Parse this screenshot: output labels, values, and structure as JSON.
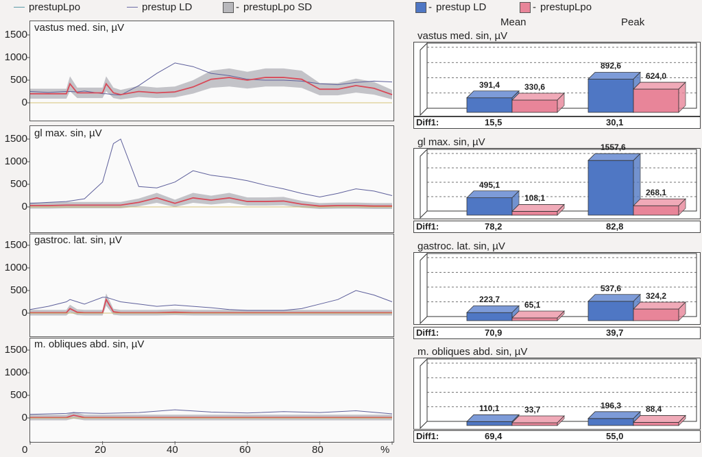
{
  "legend_left": [
    {
      "label": "prestupLpo",
      "color": "#5a9aa8",
      "kind": "line"
    },
    {
      "label": "prestup LD",
      "color": "#6b6aa5",
      "kind": "line"
    },
    {
      "label": "prestupLpo SD",
      "color": "#b8b8bc",
      "kind": "box"
    }
  ],
  "legend_right": [
    {
      "label": "prestup LD",
      "color": "#4f77c4"
    },
    {
      "label": "prestupLpo",
      "color": "#e88599"
    }
  ],
  "column_headers": {
    "mean": "Mean",
    "peak": "Peak"
  },
  "x_axis": {
    "ticks": [
      "0",
      "20",
      "40",
      "60",
      "80",
      "%"
    ]
  },
  "y_axis": {
    "ticks": [
      "1500",
      "1000",
      "500",
      "0"
    ]
  },
  "colors": {
    "ld_line": "#5c5e9a",
    "lpo_line": "#d84a58",
    "sd_band": "#b8b8be",
    "bar_ld": "#4f77c4",
    "bar_lpo": "#e88599",
    "bar_ld_top": "#7d9bd8",
    "bar_lpo_top": "#f0aab8"
  },
  "chart_data": [
    {
      "type": "line",
      "title": "vastus med. sin, µV",
      "x": [
        0,
        5,
        10,
        11,
        13,
        15,
        20,
        21,
        23,
        25,
        30,
        35,
        40,
        45,
        50,
        55,
        60,
        65,
        70,
        75,
        80,
        85,
        90,
        95,
        100
      ],
      "series": [
        {
          "name": "prestup LD",
          "values": [
            250,
            230,
            250,
            250,
            240,
            260,
            200,
            200,
            180,
            170,
            380,
            650,
            880,
            800,
            650,
            600,
            520,
            500,
            500,
            480,
            420,
            400,
            450,
            480,
            460
          ]
        },
        {
          "name": "prestupLpo",
          "values": [
            200,
            200,
            200,
            420,
            220,
            220,
            220,
            420,
            220,
            180,
            250,
            220,
            240,
            350,
            520,
            560,
            500,
            560,
            560,
            520,
            300,
            300,
            380,
            320,
            180
          ]
        }
      ],
      "ylim": [
        -300,
        1700
      ]
    },
    {
      "type": "line",
      "title": "gl max. sin, µV",
      "x": [
        0,
        5,
        10,
        15,
        20,
        23,
        25,
        30,
        35,
        40,
        45,
        50,
        55,
        60,
        65,
        70,
        75,
        80,
        85,
        90,
        95,
        100
      ],
      "series": [
        {
          "name": "prestup LD",
          "values": [
            80,
            100,
            120,
            180,
            550,
            1400,
            1500,
            450,
            420,
            550,
            800,
            700,
            650,
            580,
            480,
            400,
            300,
            220,
            300,
            400,
            350,
            250
          ]
        },
        {
          "name": "prestupLpo",
          "values": [
            30,
            30,
            40,
            40,
            40,
            40,
            40,
            100,
            200,
            80,
            200,
            150,
            200,
            120,
            120,
            130,
            60,
            20,
            30,
            30,
            20,
            20
          ]
        }
      ],
      "ylim": [
        -300,
        1700
      ]
    },
    {
      "type": "line",
      "title": "gastroc. lat. sin, µV",
      "x": [
        0,
        5,
        10,
        11,
        13,
        15,
        20,
        21,
        23,
        25,
        30,
        35,
        40,
        45,
        50,
        55,
        60,
        65,
        70,
        75,
        80,
        85,
        90,
        95,
        100
      ],
      "series": [
        {
          "name": "prestup LD",
          "values": [
            80,
            150,
            250,
            300,
            250,
            200,
            350,
            350,
            300,
            250,
            200,
            150,
            180,
            150,
            120,
            80,
            60,
            60,
            60,
            100,
            200,
            300,
            500,
            400,
            250
          ]
        },
        {
          "name": "prestupLpo",
          "values": [
            10,
            10,
            10,
            100,
            20,
            10,
            10,
            300,
            30,
            10,
            10,
            10,
            20,
            10,
            10,
            10,
            10,
            10,
            10,
            10,
            10,
            10,
            10,
            10,
            10
          ]
        }
      ],
      "ylim": [
        -300,
        1700
      ]
    },
    {
      "type": "line",
      "title": "m. obliques abd. sin, µV",
      "x": [
        0,
        10,
        12,
        15,
        20,
        30,
        40,
        50,
        60,
        70,
        80,
        90,
        100
      ],
      "series": [
        {
          "name": "prestup LD",
          "values": [
            80,
            100,
            120,
            110,
            100,
            120,
            180,
            130,
            110,
            140,
            120,
            160,
            90
          ]
        },
        {
          "name": "prestupLpo",
          "values": [
            10,
            10,
            60,
            10,
            10,
            10,
            10,
            10,
            10,
            10,
            10,
            10,
            10
          ]
        }
      ],
      "ylim": [
        -300,
        1700
      ]
    },
    {
      "type": "bar",
      "title": "vastus med. sin, µV",
      "categories": [
        "Mean",
        "Peak"
      ],
      "series": [
        {
          "name": "prestup LD",
          "values": [
            391.4,
            892.6
          ]
        },
        {
          "name": "prestupLpo",
          "values": [
            330.6,
            624.0
          ]
        }
      ],
      "labels": [
        "391,4",
        "330,6",
        "892,6",
        "624,0"
      ],
      "diff_label": "Diff1:",
      "diff": [
        "15,5",
        "30,1"
      ],
      "ylim": [
        0,
        1600
      ]
    },
    {
      "type": "bar",
      "title": "gl max. sin, µV",
      "categories": [
        "Mean",
        "Peak"
      ],
      "series": [
        {
          "name": "prestup LD",
          "values": [
            495.1,
            1557.6
          ]
        },
        {
          "name": "prestupLpo",
          "values": [
            108.1,
            268.1
          ]
        }
      ],
      "labels": [
        "495,1",
        "108,1",
        "1557,6",
        "268,1"
      ],
      "diff_label": "Diff1:",
      "diff": [
        "78,2",
        "82,8"
      ],
      "ylim": [
        0,
        1600
      ]
    },
    {
      "type": "bar",
      "title": "gastroc. lat. sin, µV",
      "categories": [
        "Mean",
        "Peak"
      ],
      "series": [
        {
          "name": "prestup LD",
          "values": [
            223.7,
            537.6
          ]
        },
        {
          "name": "prestupLpo",
          "values": [
            65.1,
            324.2
          ]
        }
      ],
      "labels": [
        "223,7",
        "65,1",
        "537,6",
        "324,2"
      ],
      "diff_label": "Diff1:",
      "diff": [
        "70,9",
        "39,7"
      ],
      "ylim": [
        0,
        1600
      ]
    },
    {
      "type": "bar",
      "title": "m. obliques abd. sin, µV",
      "categories": [
        "Mean",
        "Peak"
      ],
      "series": [
        {
          "name": "prestup LD",
          "values": [
            110.1,
            196.3
          ]
        },
        {
          "name": "prestupLpo",
          "values": [
            33.7,
            88.4
          ]
        }
      ],
      "labels": [
        "110,1",
        "33,7",
        "196,3",
        "88,4"
      ],
      "diff_label": "Diff1:",
      "diff": [
        "69,4",
        "55,0"
      ],
      "ylim": [
        0,
        1600
      ]
    }
  ]
}
